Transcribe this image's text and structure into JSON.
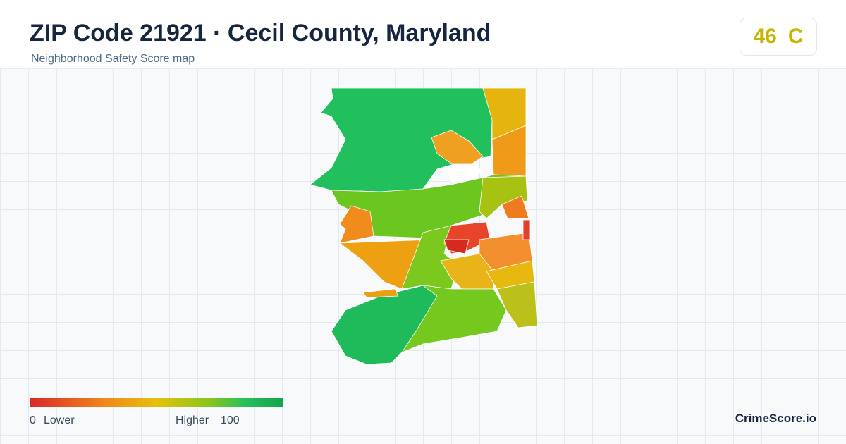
{
  "header": {
    "title": "ZIP Code 21921 · Cecil County, Maryland",
    "subtitle": "Neighborhood Safety Score map"
  },
  "score": {
    "value": 46,
    "grade": "C"
  },
  "legend": {
    "min": 0,
    "min_label": "Lower",
    "max_label": "Higher",
    "max": 100
  },
  "brand": "CrimeScore.io"
}
